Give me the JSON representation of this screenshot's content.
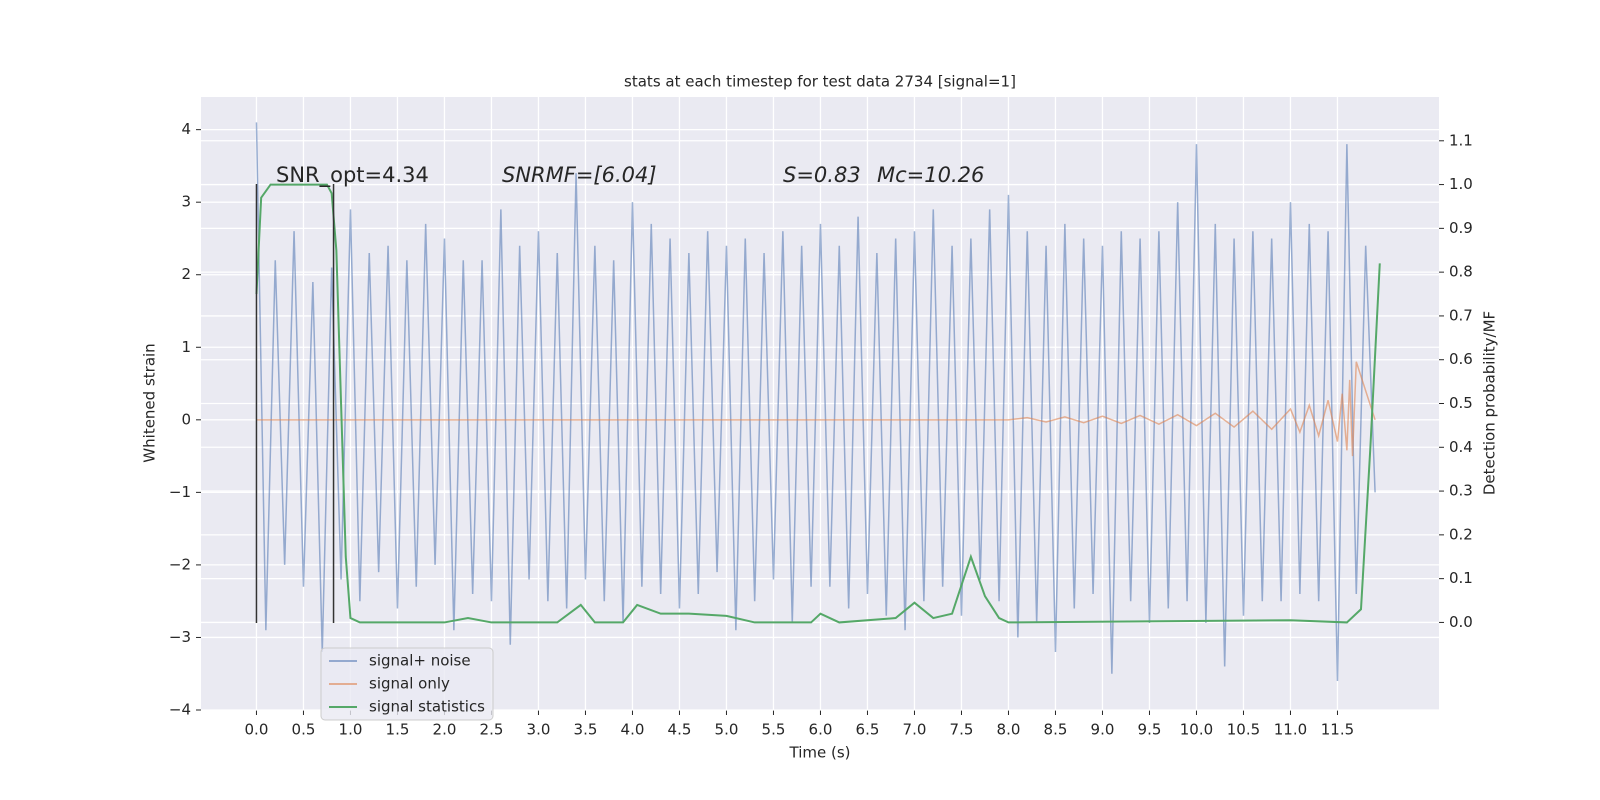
{
  "chart_data": {
    "type": "line",
    "title": "stats at each timestep for test data 2734 [signal=1]",
    "x_label": "Time (s)",
    "y_label": "Whitened strain",
    "y2_label": "Detection probability/MF",
    "annotations": [
      "SNR_opt=4.34",
      "SNRMF=[6.04]",
      "S=0.83",
      "Mc=10.26"
    ],
    "xlim": [
      -0.59,
      12.58
    ],
    "ylim": [
      -4,
      4.45
    ],
    "y2lim": [
      -0.2,
      1.2
    ],
    "xticks": [
      {
        "value": 0,
        "label": "0.0"
      },
      {
        "value": 0.5,
        "label": "0.5"
      },
      {
        "value": 1,
        "label": "1.0"
      },
      {
        "value": 1.5,
        "label": "1.5"
      },
      {
        "value": 2,
        "label": "2.0"
      },
      {
        "value": 2.5,
        "label": "2.5"
      },
      {
        "value": 3,
        "label": "3.0"
      },
      {
        "value": 3.5,
        "label": "3.5"
      },
      {
        "value": 4,
        "label": "4.0"
      },
      {
        "value": 4.5,
        "label": "4.5"
      },
      {
        "value": 5,
        "label": "5.0"
      },
      {
        "value": 5.5,
        "label": "5.5"
      },
      {
        "value": 6,
        "label": "6.0"
      },
      {
        "value": 6.5,
        "label": "6.5"
      },
      {
        "value": 7,
        "label": "7.0"
      },
      {
        "value": 7.5,
        "label": "7.5"
      },
      {
        "value": 8,
        "label": "8.0"
      },
      {
        "value": 8.5,
        "label": "8.5"
      },
      {
        "value": 9,
        "label": "9.0"
      },
      {
        "value": 9.5,
        "label": "9.5"
      },
      {
        "value": 10,
        "label": "10.0"
      },
      {
        "value": 10.5,
        "label": "10.5"
      },
      {
        "value": 11,
        "label": "11.0"
      },
      {
        "value": 11.5,
        "label": "11.5"
      }
    ],
    "yticks": [
      {
        "value": -4,
        "label": "−4"
      },
      {
        "value": -3,
        "label": "−3"
      },
      {
        "value": -2,
        "label": "−2"
      },
      {
        "value": -1,
        "label": "−1"
      },
      0,
      1,
      2,
      3,
      4
    ],
    "y2ticks": [
      {
        "value": 0,
        "label": "0.0"
      },
      {
        "value": 0.1,
        "label": "0.1"
      },
      {
        "value": 0.2,
        "label": "0.2"
      },
      {
        "value": 0.3,
        "label": "0.3"
      },
      {
        "value": 0.4,
        "label": "0.4"
      },
      {
        "value": 0.5,
        "label": "0.5"
      },
      {
        "value": 0.6,
        "label": "0.6"
      },
      {
        "value": 0.7,
        "label": "0.7"
      },
      {
        "value": 0.8,
        "label": "0.8"
      },
      {
        "value": 0.9,
        "label": "0.9"
      },
      {
        "value": 1,
        "label": "1.0"
      },
      {
        "value": 1.1,
        "label": "1.1"
      }
    ],
    "grid": true,
    "legend": "lower left",
    "vlines": [
      {
        "x": 0,
        "ymin": -2.8,
        "ymax": 3.25,
        "color": "#333333"
      },
      {
        "x": 0.82,
        "ymin": -2.8,
        "ymax": 3.25,
        "color": "#333333"
      }
    ],
    "series": [
      {
        "name": "signal+ noise",
        "color": "#4c72b0",
        "opacity": 0.55,
        "x": [
          0,
          0.1,
          0.2,
          0.3,
          0.4,
          0.5,
          0.6,
          0.7,
          0.8,
          0.9,
          1,
          1.1,
          1.2,
          1.3,
          1.4,
          1.5,
          1.6,
          1.7,
          1.8,
          1.9,
          2,
          2.1,
          2.2,
          2.3,
          2.4,
          2.5,
          2.6,
          2.7,
          2.8,
          2.9,
          3,
          3.1,
          3.2,
          3.3,
          3.4,
          3.5,
          3.6,
          3.7,
          3.8,
          3.9,
          4,
          4.1,
          4.2,
          4.3,
          4.4,
          4.5,
          4.6,
          4.7,
          4.8,
          4.9,
          5,
          5.1,
          5.2,
          5.3,
          5.4,
          5.5,
          5.6,
          5.7,
          5.8,
          5.9,
          6,
          6.1,
          6.2,
          6.3,
          6.4,
          6.5,
          6.6,
          6.7,
          6.8,
          6.9,
          7,
          7.1,
          7.2,
          7.3,
          7.4,
          7.5,
          7.6,
          7.7,
          7.8,
          7.9,
          8,
          8.1,
          8.2,
          8.3,
          8.4,
          8.5,
          8.6,
          8.7,
          8.8,
          8.9,
          9,
          9.1,
          9.2,
          9.3,
          9.4,
          9.5,
          9.6,
          9.7,
          9.8,
          9.9,
          10,
          10.1,
          10.2,
          10.3,
          10.4,
          10.5,
          10.6,
          10.7,
          10.8,
          10.9,
          11,
          11.1,
          11.2,
          11.3,
          11.4,
          11.5,
          11.6,
          11.7,
          11.8,
          11.9
        ],
        "values": [
          4.1,
          -2.9,
          2.2,
          -2.0,
          2.6,
          -2.3,
          1.9,
          -3.2,
          2.1,
          -2.2,
          2.9,
          -2.5,
          2.3,
          -2.1,
          2.4,
          -2.6,
          2.2,
          -2.3,
          2.7,
          -2.0,
          2.5,
          -2.9,
          2.2,
          -2.4,
          2.2,
          -2.5,
          2.9,
          -3.1,
          2.4,
          -2.2,
          2.6,
          -2.5,
          2.3,
          -2.6,
          3.4,
          -2.2,
          2.4,
          -2.5,
          2.2,
          -2.8,
          3.0,
          -2.3,
          2.7,
          -2.4,
          2.5,
          -2.6,
          2.3,
          -2.4,
          2.6,
          -2.1,
          2.4,
          -2.9,
          2.5,
          -2.5,
          2.3,
          -2.2,
          2.6,
          -2.8,
          2.4,
          -2.3,
          2.7,
          -2.3,
          2.4,
          -2.6,
          2.8,
          -2.4,
          2.3,
          -2.7,
          2.5,
          -2.9,
          2.6,
          -2.5,
          2.9,
          -2.3,
          2.4,
          -2.7,
          2.5,
          -2.2,
          2.9,
          -2.5,
          3.1,
          -3.0,
          2.6,
          -2.8,
          2.4,
          -3.2,
          2.7,
          -2.6,
          2.5,
          -2.4,
          2.4,
          -3.5,
          2.6,
          -2.5,
          2.5,
          -2.8,
          2.6,
          -2.6,
          3.0,
          -2.5,
          3.8,
          -2.8,
          2.7,
          -3.4,
          2.5,
          -2.7,
          2.6,
          -2.5,
          2.5,
          -2.5,
          3.0,
          -2.4,
          2.7,
          -2.5,
          2.6,
          -3.6,
          3.8,
          -2.4,
          2.4,
          -1.0
        ]
      },
      {
        "name": "signal only",
        "color": "#dd8452",
        "opacity": 0.6,
        "x": [
          0,
          8,
          8.2,
          8.4,
          8.6,
          8.8,
          9,
          9.2,
          9.4,
          9.6,
          9.8,
          10,
          10.2,
          10.4,
          10.6,
          10.8,
          11,
          11.1,
          11.2,
          11.3,
          11.4,
          11.5,
          11.55,
          11.6,
          11.63,
          11.66,
          11.7,
          11.9
        ],
        "values": [
          0,
          0,
          0.03,
          -0.03,
          0.04,
          -0.04,
          0.05,
          -0.05,
          0.06,
          -0.06,
          0.07,
          -0.08,
          0.09,
          -0.1,
          0.12,
          -0.13,
          0.15,
          -0.17,
          0.2,
          -0.22,
          0.27,
          -0.3,
          0.36,
          -0.42,
          0.55,
          -0.5,
          0.8,
          0
        ]
      },
      {
        "name": "signal statistics",
        "color": "#55a868",
        "opacity": 1,
        "axis": "y2",
        "x": [
          0,
          0.05,
          0.15,
          0.3,
          0.75,
          0.8,
          0.85,
          0.9,
          0.95,
          1.0,
          1.1,
          2.0,
          2.25,
          2.5,
          3.2,
          3.45,
          3.6,
          3.9,
          4.05,
          4.3,
          4.6,
          5.0,
          5.3,
          5.9,
          6.0,
          6.2,
          6.8,
          7.0,
          7.2,
          7.4,
          7.6,
          7.75,
          7.9,
          8.0,
          11.0,
          11.6,
          11.75,
          11.85,
          11.95
        ],
        "values": [
          0.75,
          0.97,
          1.0,
          1.0,
          1.0,
          0.98,
          0.85,
          0.5,
          0.15,
          0.01,
          0.0,
          0.0,
          0.01,
          0.0,
          0.0,
          0.04,
          0.0,
          0.0,
          0.04,
          0.02,
          0.02,
          0.015,
          0.0,
          0.0,
          0.02,
          0.0,
          0.01,
          0.045,
          0.01,
          0.02,
          0.15,
          0.06,
          0.01,
          0.0,
          0.005,
          0.0,
          0.03,
          0.4,
          0.82
        ]
      }
    ]
  }
}
